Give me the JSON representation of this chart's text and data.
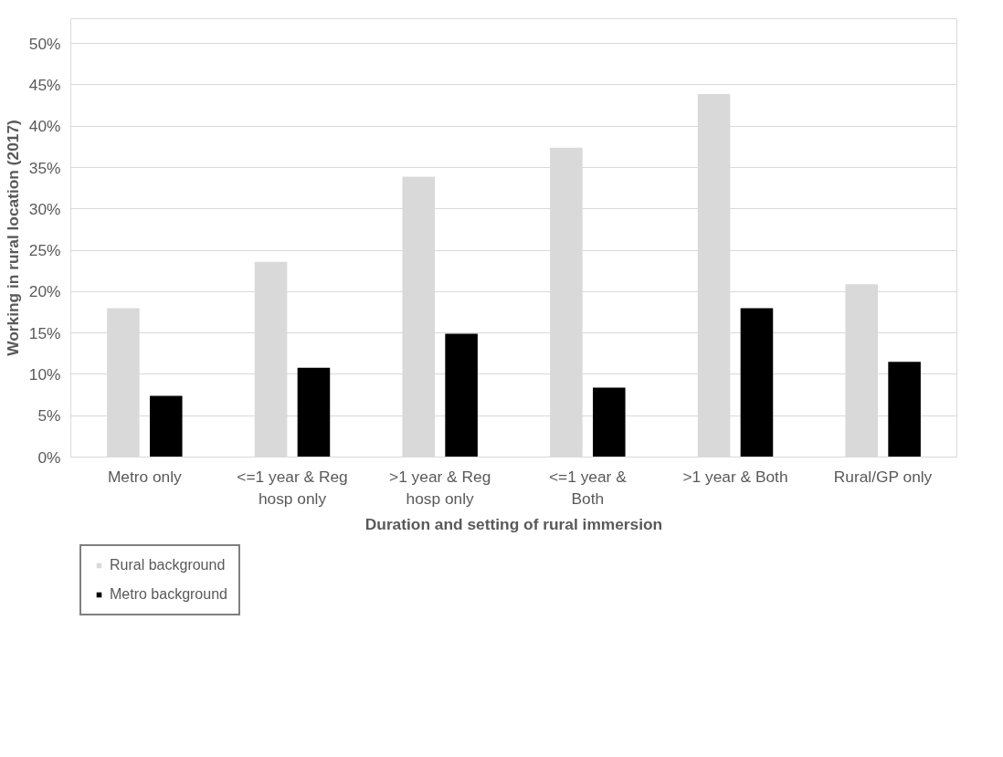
{
  "chart_data": {
    "type": "bar",
    "xlabel": "Duration and setting of rural immersion",
    "ylabel": "Working in rural location (2017)",
    "categories": [
      "Metro only",
      "<=1 year & Reg hosp only",
      ">1 year & Reg hosp only",
      "<=1 year & Both",
      ">1 year & Both",
      "Rural/GP only"
    ],
    "series": [
      {
        "name": "Rural background",
        "color": "#d9d9d9",
        "values": [
          18.0,
          23.6,
          33.9,
          37.4,
          43.9,
          20.9
        ]
      },
      {
        "name": "Metro background",
        "color": "#000000",
        "values": [
          7.4,
          10.8,
          14.9,
          8.4,
          18.0,
          11.5
        ]
      }
    ],
    "ylim": [
      0,
      53
    ],
    "yticks": [
      {
        "value": 0,
        "label": "0%"
      },
      {
        "value": 5,
        "label": "5%"
      },
      {
        "value": 10,
        "label": "10%"
      },
      {
        "value": 15,
        "label": "15%"
      },
      {
        "value": 20,
        "label": "20%"
      },
      {
        "value": 25,
        "label": "25%"
      },
      {
        "value": 30,
        "label": "30%"
      },
      {
        "value": 35,
        "label": "35%"
      },
      {
        "value": 40,
        "label": "40%"
      },
      {
        "value": 45,
        "label": "45%"
      },
      {
        "value": 50,
        "label": "50%"
      }
    ],
    "grid": "y",
    "legend": "bottom left"
  }
}
